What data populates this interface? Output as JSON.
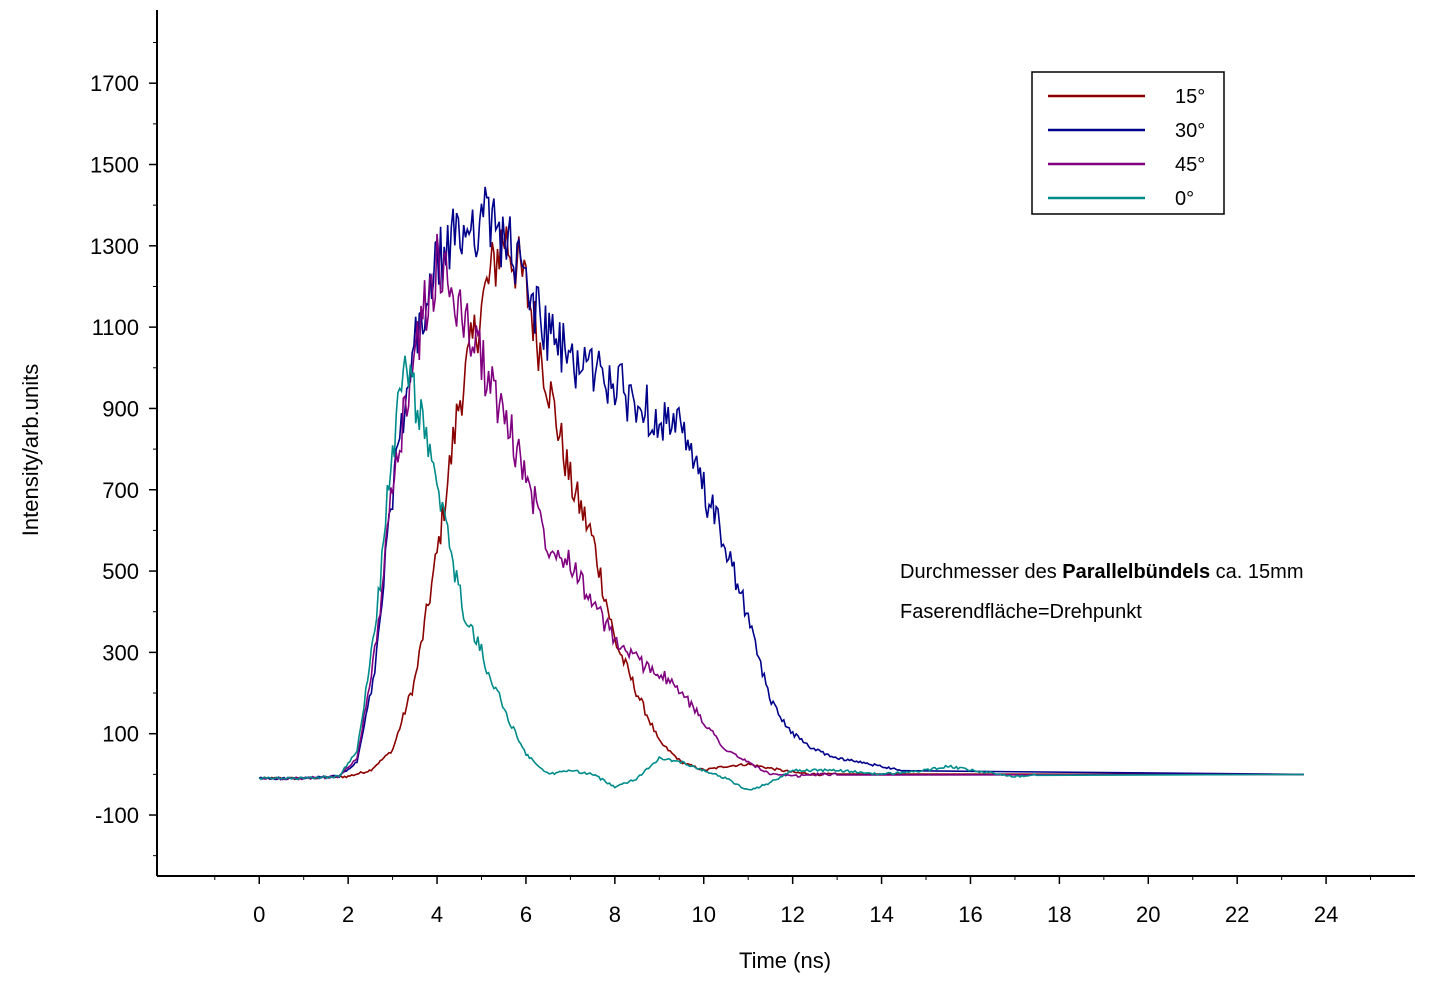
{
  "chart_data": {
    "type": "line",
    "xlabel": "Time (ns)",
    "ylabel": "Intensity/arb.units",
    "xlim": [
      -2.3,
      26.0
    ],
    "ylim": [
      -250,
      1880
    ],
    "xticks": [
      "0",
      "2",
      "4",
      "6",
      "8",
      "10",
      "12",
      "14",
      "16",
      "18",
      "20",
      "22",
      "24"
    ],
    "yticks": [
      "-100",
      "100",
      "300",
      "500",
      "700",
      "900",
      "1100",
      "1300",
      "1500",
      "1700"
    ],
    "legend_position": "top-right",
    "annotations": {
      "line1_prefix": "Durchmesser des ",
      "line1_bold": "Parallelbündels",
      "line1_suffix": " ca. 15mm",
      "line2": "Faserendfläche=Drehpunkt"
    },
    "series": [
      {
        "name": "15°",
        "color": "#8b0000",
        "x": [
          0,
          1,
          2,
          2.5,
          3,
          3.5,
          4,
          4.5,
          5,
          5.5,
          6,
          6.5,
          7,
          7.5,
          8,
          8.5,
          9,
          9.5,
          10,
          10.5,
          11,
          11.5,
          12,
          12.5,
          13
        ],
        "y": [
          -10,
          -10,
          -5,
          10,
          60,
          230,
          540,
          920,
          1150,
          1330,
          1200,
          960,
          720,
          580,
          330,
          200,
          80,
          30,
          10,
          20,
          25,
          15,
          5,
          0,
          0
        ]
      },
      {
        "name": "30°",
        "color": "#00008b",
        "x": [
          0,
          1,
          1.8,
          2.2,
          2.6,
          3,
          3.5,
          4,
          4.5,
          5,
          5.5,
          6,
          6.5,
          7,
          7.5,
          8,
          8.5,
          9,
          9.5,
          10,
          10.5,
          11,
          11.5,
          12,
          12.5,
          13,
          13.5,
          14,
          14.5
        ],
        "y": [
          -10,
          -10,
          -5,
          30,
          250,
          700,
          1050,
          1250,
          1330,
          1370,
          1330,
          1200,
          1080,
          1020,
          1000,
          960,
          910,
          880,
          840,
          700,
          560,
          380,
          180,
          100,
          60,
          40,
          30,
          20,
          10
        ]
      },
      {
        "name": "45°",
        "color": "#800080",
        "x": [
          0,
          1,
          1.8,
          2.2,
          2.6,
          3,
          3.5,
          4,
          4.5,
          5,
          5.5,
          6,
          6.5,
          7,
          7.5,
          8,
          8.5,
          9,
          9.5,
          10,
          10.5,
          11,
          11.5,
          12,
          12.5,
          13
        ],
        "y": [
          -10,
          -10,
          -5,
          40,
          300,
          700,
          1050,
          1250,
          1150,
          1020,
          880,
          740,
          570,
          530,
          420,
          330,
          280,
          250,
          200,
          130,
          60,
          30,
          0,
          -5,
          0,
          0
        ]
      },
      {
        "name": "0°",
        "color": "#008b8b",
        "x": [
          0,
          1,
          1.8,
          2.2,
          2.6,
          3,
          3.3,
          3.6,
          4,
          4.3,
          4.6,
          5,
          5.5,
          6,
          6.5,
          7,
          7.5,
          8,
          8.5,
          9,
          9.5,
          10,
          10.5,
          11,
          11.5,
          12,
          13,
          14,
          15,
          15.5,
          16,
          17,
          17.5
        ],
        "y": [
          -10,
          -10,
          -5,
          60,
          350,
          800,
          1000,
          900,
          700,
          550,
          400,
          300,
          160,
          50,
          0,
          10,
          0,
          -30,
          -10,
          40,
          30,
          10,
          -10,
          -40,
          -20,
          10,
          10,
          0,
          10,
          20,
          10,
          -5,
          0
        ]
      }
    ]
  }
}
